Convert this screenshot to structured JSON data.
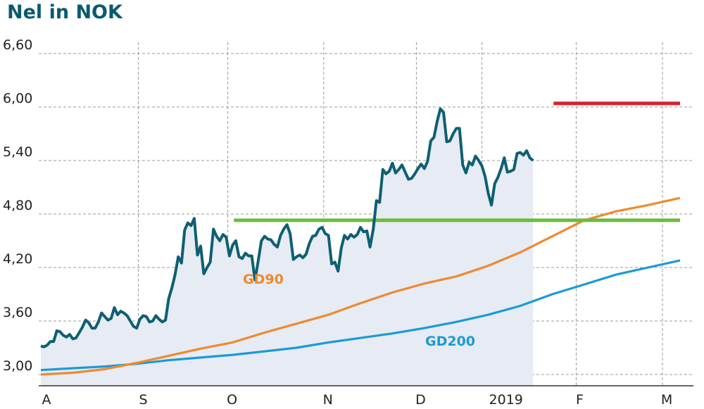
{
  "chart_data": {
    "type": "line",
    "title": "Nel in NOK",
    "xlabel": "",
    "ylabel": "",
    "ylim": [
      2.95,
      6.75
    ],
    "y_ticks": [
      {
        "value": 3.0,
        "label": "3,00"
      },
      {
        "value": 3.6,
        "label": "3,60"
      },
      {
        "value": 4.2,
        "label": "4,20"
      },
      {
        "value": 4.8,
        "label": "4,80"
      },
      {
        "value": 5.4,
        "label": "5,40"
      },
      {
        "value": 6.0,
        "label": "6,00"
      },
      {
        "value": 6.6,
        "label": "6,60"
      }
    ],
    "x_ticks": [
      "A",
      "S",
      "O",
      "N",
      "D",
      "2019",
      "F",
      "M"
    ],
    "grid": true,
    "colors": {
      "price": "#0f5f72",
      "price_fill": "#e6ebf4",
      "gd90": "#ee8a2e",
      "gd200": "#1b9ad6",
      "support": "#6cbb3c",
      "resistance": "#d9202f",
      "grid": "#9a9a9a",
      "title": "#0a5a6e"
    },
    "series": [
      {
        "key": "price",
        "values": [
          3.32,
          3.31,
          3.33,
          3.37,
          3.37,
          3.49,
          3.48,
          3.44,
          3.42,
          3.45,
          3.4,
          3.41,
          3.47,
          3.53,
          3.61,
          3.58,
          3.52,
          3.52,
          3.59,
          3.69,
          3.65,
          3.61,
          3.63,
          3.75,
          3.67,
          3.71,
          3.69,
          3.66,
          3.6,
          3.54,
          3.52,
          3.62,
          3.66,
          3.65,
          3.59,
          3.6,
          3.66,
          3.62,
          3.59,
          3.61,
          3.85,
          3.97,
          4.12,
          4.32,
          4.25,
          4.62,
          4.7,
          4.67,
          4.75,
          4.34,
          4.44,
          4.13,
          4.2,
          4.26,
          4.63,
          4.55,
          4.5,
          4.57,
          4.54,
          4.33,
          4.45,
          4.5,
          4.32,
          4.3,
          4.36,
          4.33,
          4.33,
          4.06,
          4.27,
          4.5,
          4.55,
          4.52,
          4.51,
          4.46,
          4.43,
          4.56,
          4.63,
          4.68,
          4.58,
          4.29,
          4.32,
          4.34,
          4.31,
          4.35,
          4.47,
          4.55,
          4.56,
          4.63,
          4.65,
          4.58,
          4.56,
          4.24,
          4.26,
          4.16,
          4.42,
          4.56,
          4.52,
          4.57,
          4.54,
          4.57,
          4.65,
          4.6,
          4.61,
          4.43,
          4.63,
          4.95,
          4.93,
          5.3,
          5.25,
          5.28,
          5.37,
          5.26,
          5.3,
          5.35,
          5.27,
          5.19,
          5.2,
          5.25,
          5.31,
          5.36,
          5.31,
          5.39,
          5.62,
          5.66,
          5.84,
          5.98,
          5.94,
          5.61,
          5.62,
          5.7,
          5.76,
          5.76,
          5.35,
          5.26,
          5.38,
          5.35,
          5.45,
          5.4,
          5.34,
          5.22,
          5.03,
          4.9,
          5.14,
          5.21,
          5.31,
          5.43,
          5.27,
          5.28,
          5.3,
          5.48,
          5.49,
          5.46,
          5.51,
          5.43,
          5.4
        ]
      },
      {
        "key": "gd90",
        "name": "GD90",
        "points": [
          [
            0,
            3.0
          ],
          [
            10,
            3.02
          ],
          [
            20,
            3.06
          ],
          [
            30,
            3.13
          ],
          [
            40,
            3.21
          ],
          [
            50,
            3.29
          ],
          [
            60,
            3.36
          ],
          [
            70,
            3.47
          ],
          [
            80,
            3.57
          ],
          [
            90,
            3.67
          ],
          [
            100,
            3.8
          ],
          [
            110,
            3.92
          ],
          [
            120,
            4.02
          ],
          [
            130,
            4.1
          ],
          [
            140,
            4.22
          ],
          [
            150,
            4.37
          ],
          [
            160,
            4.55
          ],
          [
            170,
            4.73
          ],
          [
            180,
            4.83
          ],
          [
            190,
            4.9
          ],
          [
            200,
            4.98
          ]
        ]
      },
      {
        "key": "gd200",
        "name": "GD200",
        "points": [
          [
            0,
            3.05
          ],
          [
            10,
            3.07
          ],
          [
            20,
            3.09
          ],
          [
            30,
            3.12
          ],
          [
            40,
            3.16
          ],
          [
            50,
            3.19
          ],
          [
            60,
            3.22
          ],
          [
            70,
            3.26
          ],
          [
            80,
            3.3
          ],
          [
            90,
            3.36
          ],
          [
            100,
            3.41
          ],
          [
            110,
            3.46
          ],
          [
            120,
            3.52
          ],
          [
            130,
            3.59
          ],
          [
            140,
            3.67
          ],
          [
            150,
            3.77
          ],
          [
            160,
            3.9
          ],
          [
            170,
            4.01
          ],
          [
            180,
            4.12
          ],
          [
            190,
            4.2
          ],
          [
            200,
            4.28
          ]
        ]
      }
    ],
    "annotations": [
      {
        "type": "horizontal_line",
        "key": "support",
        "value": 4.73,
        "x_from": 60.4,
        "x_to": 200
      },
      {
        "type": "horizontal_line",
        "key": "resistance",
        "value": 6.04,
        "x_from": 160.4,
        "x_to": 200
      }
    ]
  }
}
